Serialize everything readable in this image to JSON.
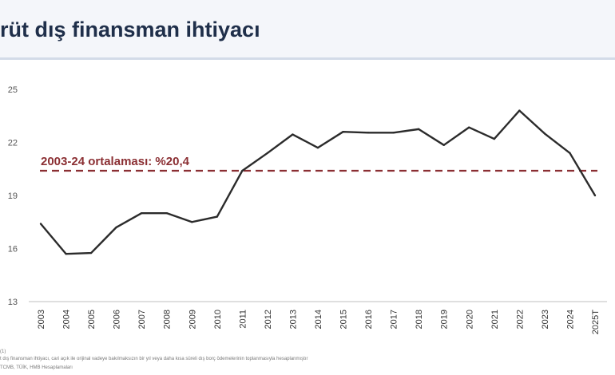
{
  "header": {
    "title": "rüt dış finansman ihtiyacı"
  },
  "chart_data": {
    "type": "line",
    "title": "",
    "xlabel": "",
    "ylabel": "",
    "categories": [
      "2003",
      "2004",
      "2005",
      "2006",
      "2007",
      "2008",
      "2009",
      "2010",
      "2011",
      "2012",
      "2013",
      "2014",
      "2015",
      "2016",
      "2017",
      "2018",
      "2019",
      "2020",
      "2021",
      "2022",
      "2023",
      "2024",
      "2025T"
    ],
    "series": [
      {
        "name": "",
        "values": [
          17.4,
          15.7,
          15.75,
          17.2,
          18.0,
          18.0,
          17.5,
          17.8,
          20.4,
          21.4,
          22.45,
          21.7,
          22.6,
          22.55,
          22.55,
          22.75,
          21.85,
          22.85,
          22.2,
          23.8,
          22.5,
          21.4,
          19.0
        ]
      }
    ],
    "ylim": [
      13,
      25
    ],
    "yticks": [
      13,
      16,
      19,
      22,
      25
    ],
    "reference_line": {
      "value": 20.4,
      "label": "2003-24 ortalaması: %20,4",
      "color": "#8b2f33",
      "style": "dashed"
    },
    "line_color": "#2b2b2b",
    "grid": false,
    "legend": "none"
  },
  "footnotes": {
    "marker": "(1)",
    "line1": "t dış finansman ihtiyacı, cari açık ile orijinal vadeye bakılmaksızın bir yıl veya daha kısa süreli dış borç ödemelerinin toplanmasıyla hesaplanmıştır",
    "line2": "TCMB, TÜİK, HMB Hesaplamaları"
  }
}
